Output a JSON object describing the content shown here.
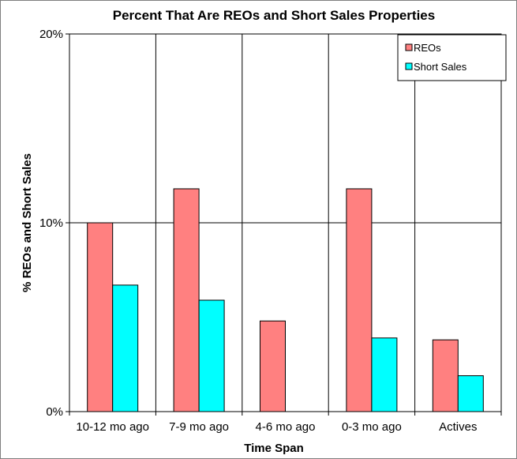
{
  "chart_data": {
    "type": "bar",
    "title": "Percent That Are REOs and Short Sales Properties",
    "xlabel": "Time Span",
    "ylabel": "% REOs and Short Sales",
    "categories": [
      "10-12 mo ago",
      "7-9 mo ago",
      "4-6 mo ago",
      "0-3 mo ago",
      "Actives"
    ],
    "series": [
      {
        "name": "REOs",
        "values": [
          10.0,
          11.8,
          4.8,
          11.8,
          3.8
        ],
        "color": "#ff8080"
      },
      {
        "name": "Short Sales",
        "values": [
          6.7,
          5.9,
          0,
          3.9,
          1.9
        ],
        "color": "#00ffff"
      }
    ],
    "ylim": [
      0,
      20
    ],
    "yticks": [
      0,
      10,
      20
    ],
    "ytick_labels": [
      "0%",
      "10%",
      "20%"
    ],
    "grid": {
      "horizontal": true,
      "vertical_category_separators": true
    },
    "legend_position": "top-right"
  }
}
